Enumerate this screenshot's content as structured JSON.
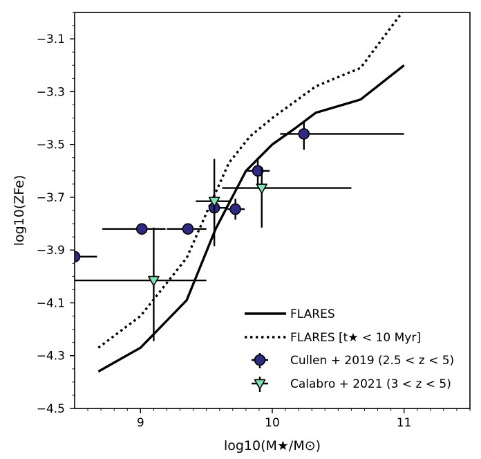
{
  "chart_data": {
    "type": "line",
    "xlabel": "log10(M★/M⊙)",
    "ylabel": "log10(ZFe)",
    "xlim": [
      8.5,
      11.5
    ],
    "ylim": [
      -4.5,
      -3.0
    ],
    "x_ticks": [
      9,
      10,
      11
    ],
    "x_tick_labels": [
      "9",
      "10",
      "11"
    ],
    "y_ticks": [
      -4.5,
      -4.3,
      -4.1,
      -3.9,
      -3.7,
      -3.5,
      -3.3,
      -3.1
    ],
    "y_tick_labels": [
      "−4.5",
      "−4.3",
      "−4.1",
      "−3.9",
      "−3.7",
      "−3.5",
      "−3.3",
      "−3.1"
    ],
    "legend_position": "lower-right",
    "grid": false,
    "series": [
      {
        "name": "FLARES",
        "style": "solid",
        "color": "#000000",
        "x": [
          8.68,
          9.0,
          9.35,
          9.57,
          9.8,
          10.0,
          10.17,
          10.33,
          10.67,
          11.0
        ],
        "y": [
          -4.36,
          -4.27,
          -4.09,
          -3.82,
          -3.6,
          -3.5,
          -3.44,
          -3.38,
          -3.33,
          -3.2
        ]
      },
      {
        "name": "FLARES [t★ < 10 Myr]",
        "style": "dotted",
        "color": "#000000",
        "x": [
          8.68,
          9.0,
          9.35,
          9.5,
          9.67,
          9.83,
          10.0,
          10.33,
          10.67,
          11.0
        ],
        "y": [
          -4.27,
          -4.15,
          -3.93,
          -3.76,
          -3.57,
          -3.47,
          -3.4,
          -3.28,
          -3.21,
          -2.99
        ]
      },
      {
        "name": "Cullen + 2019 (2.5 < z < 5)",
        "marker": "circle",
        "color": "#2e2a86",
        "points": [
          {
            "x": 8.5,
            "y": -3.925,
            "xerr": [
              0.0,
              0.17
            ],
            "yerr": [
              0.0,
              0.0
            ]
          },
          {
            "x": 9.01,
            "y": -3.82,
            "xerr": [
              0.3,
              0.18
            ],
            "yerr": [
              0.02,
              0.02
            ]
          },
          {
            "x": 9.36,
            "y": -3.82,
            "xerr": [
              0.16,
              0.14
            ],
            "yerr": [
              0.02,
              0.02
            ]
          },
          {
            "x": 9.56,
            "y": -3.74,
            "xerr": [
              0.04,
              0.09
            ],
            "yerr": [
              0.06,
              0.05
            ]
          },
          {
            "x": 9.72,
            "y": -3.745,
            "xerr": [
              0.06,
              0.07
            ],
            "yerr": [
              0.04,
              0.04
            ]
          },
          {
            "x": 9.89,
            "y": -3.6,
            "xerr": [
              0.08,
              0.09
            ],
            "yerr": [
              0.05,
              0.05
            ]
          },
          {
            "x": 10.24,
            "y": -3.46,
            "xerr": [
              0.18,
              0.76
            ],
            "yerr": [
              0.06,
              0.05
            ]
          }
        ]
      },
      {
        "name": "Calabro + 2021 (3 < z < 5)",
        "marker": "triangle-down",
        "color": "#7fe6b8",
        "points": [
          {
            "x": 9.1,
            "y": -4.015,
            "xerr": [
              0.6,
              0.4
            ],
            "yerr": [
              0.23,
              0.2
            ]
          },
          {
            "x": 9.56,
            "y": -3.715,
            "xerr": [
              0.14,
              0.12
            ],
            "yerr": [
              0.17,
              0.16
            ]
          },
          {
            "x": 9.92,
            "y": -3.665,
            "xerr": [
              0.3,
              0.68
            ],
            "yerr": [
              0.15,
              0.08
            ]
          }
        ]
      }
    ]
  }
}
